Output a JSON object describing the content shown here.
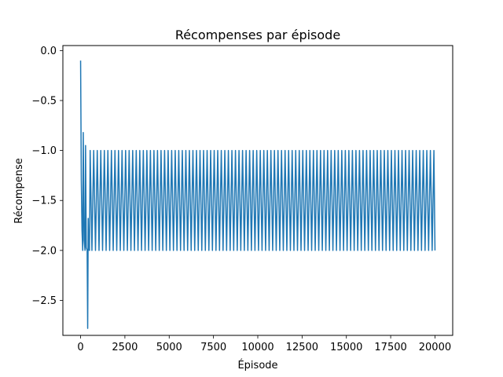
{
  "chart_data": {
    "type": "line",
    "title": "Récompenses par épisode",
    "xlabel": "Épisode",
    "ylabel": "Récompense",
    "xlim": [
      -1000,
      21000
    ],
    "ylim": [
      -2.85,
      0.05
    ],
    "x_ticks": [
      0,
      2500,
      5000,
      7500,
      10000,
      12500,
      15000,
      17500,
      20000
    ],
    "x_tick_labels": [
      "0",
      "2500",
      "5000",
      "7500",
      "10000",
      "12500",
      "15000",
      "17500",
      "20000"
    ],
    "y_ticks": [
      0.0,
      -0.5,
      -1.0,
      -1.5,
      -2.0,
      -2.5
    ],
    "y_tick_labels": [
      "0.0",
      "−0.5",
      "−1.0",
      "−1.5",
      "−2.0",
      "−2.5"
    ],
    "grid": false,
    "series": [
      {
        "color": "#1f77b4",
        "x": [
          0,
          40,
          80,
          120,
          150,
          200,
          250,
          280,
          320,
          370,
          400,
          430,
          460,
          500,
          540
        ],
        "y": [
          -0.1,
          -1.3,
          -1.8,
          -2.0,
          -0.82,
          -1.9,
          -2.0,
          -0.95,
          -1.97,
          -2.0,
          -2.78,
          -1.68,
          -1.99,
          -2.0,
          -1.0
        ],
        "periodic_segment": {
          "x_start": 540,
          "x_end": 20000,
          "period": 200,
          "high": -1.0,
          "low": -2.0
        },
        "final_point": {
          "x": 20000,
          "y": -2.0
        }
      }
    ]
  }
}
